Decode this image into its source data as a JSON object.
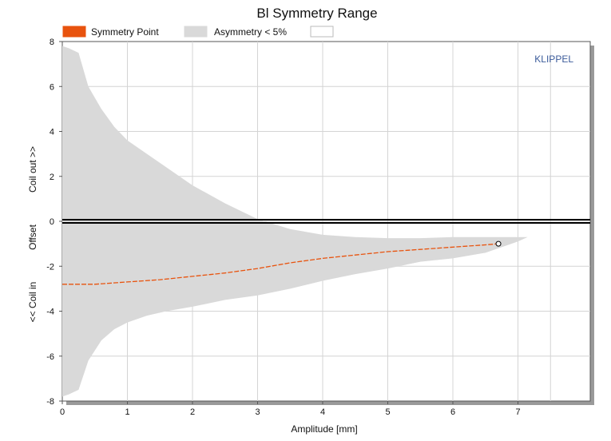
{
  "chart_data": {
    "type": "area",
    "title": "Bl Symmetry Range",
    "xlabel": "Amplitude [mm]",
    "ylabel": {
      "top": "Coil out >>",
      "middle": "Offset",
      "bottom": "<< Coil in"
    },
    "brand": "KLIPPEL",
    "xlim": [
      0,
      8
    ],
    "ylim": [
      -8,
      8
    ],
    "x_ticks": [
      "0",
      "1",
      "2",
      "3",
      "4",
      "5",
      "6",
      "7"
    ],
    "y_ticks": [
      "8",
      "6",
      "4",
      "2",
      "0",
      "-2",
      "-4",
      "-6",
      "-8"
    ],
    "grid": true,
    "legend": {
      "placement": "top",
      "entries": [
        {
          "label": "Symmetry Point",
          "color": "#e8530e"
        },
        {
          "label": "Asymmetry < 5%",
          "color": "#d9d9d9"
        },
        {
          "label": "",
          "color": "#ffffff"
        }
      ]
    },
    "series": [
      {
        "name": "Symmetry Point",
        "color": "#e8530e",
        "x": [
          0.0,
          0.5,
          1.0,
          1.5,
          2.0,
          2.5,
          3.0,
          3.5,
          4.0,
          4.5,
          5.0,
          5.5,
          6.0,
          6.5,
          6.7
        ],
        "values": [
          -2.8,
          -2.8,
          -2.7,
          -2.6,
          -2.45,
          -2.3,
          -2.1,
          -1.85,
          -1.65,
          -1.5,
          -1.35,
          -1.25,
          -1.15,
          -1.05,
          -1.0
        ]
      }
    ],
    "band": {
      "name": "Asymmetry < 5%",
      "color": "#d9d9d9",
      "x": [
        0.0,
        0.1,
        0.25,
        0.4,
        0.6,
        0.8,
        1.0,
        1.3,
        1.6,
        2.0,
        2.5,
        3.0,
        3.5,
        4.0,
        4.5,
        5.0,
        5.5,
        6.0,
        6.5,
        7.0,
        7.15
      ],
      "upper": [
        7.8,
        7.7,
        7.5,
        6.0,
        5.0,
        4.2,
        3.6,
        3.0,
        2.4,
        1.6,
        0.8,
        0.1,
        -0.35,
        -0.6,
        -0.7,
        -0.75,
        -0.75,
        -0.7,
        -0.7,
        -0.7,
        -0.7
      ],
      "lower": [
        -7.8,
        -7.7,
        -7.5,
        -6.2,
        -5.3,
        -4.8,
        -4.5,
        -4.2,
        -4.0,
        -3.8,
        -3.5,
        -3.3,
        -3.0,
        -2.65,
        -2.35,
        -2.1,
        -1.8,
        -1.65,
        -1.4,
        -0.9,
        -0.7
      ]
    },
    "reference_line": {
      "y": 0,
      "color": "#000000"
    },
    "end_marker": {
      "x": 6.7,
      "y": -1.0
    }
  }
}
